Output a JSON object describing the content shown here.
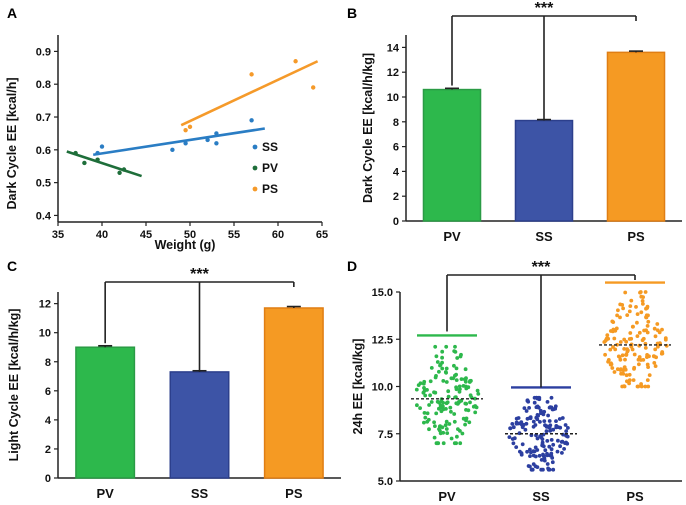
{
  "chart_data": [
    {
      "panel": "A",
      "type": "scatter",
      "xlabel": "Weight (g)",
      "ylabel": "Dark Cycle EE [kcal/h]",
      "xlim": [
        35,
        65
      ],
      "ylim": [
        0.38,
        0.95
      ],
      "xticks": [
        "35",
        "40",
        "45",
        "50",
        "55",
        "60",
        "65"
      ],
      "yticks": [
        "0.4",
        "0.5",
        "0.6",
        "0.7",
        "0.8",
        "0.9"
      ],
      "series": [
        {
          "name": "SS",
          "color": "#2a7dc4",
          "points": [
            [
              39.5,
              0.59
            ],
            [
              40,
              0.61
            ],
            [
              48,
              0.6
            ],
            [
              49.5,
              0.62
            ],
            [
              52,
              0.63
            ],
            [
              53,
              0.62
            ],
            [
              53,
              0.65
            ],
            [
              57,
              0.69
            ]
          ],
          "fit": [
            [
              39,
              0.585
            ],
            [
              58.5,
              0.665
            ]
          ]
        },
        {
          "name": "PV",
          "color": "#1e6e3a",
          "points": [
            [
              37,
              0.59
            ],
            [
              38,
              0.56
            ],
            [
              39.5,
              0.57
            ],
            [
              42,
              0.53
            ],
            [
              42.5,
              0.54
            ]
          ],
          "fit": [
            [
              36,
              0.595
            ],
            [
              44.5,
              0.52
            ]
          ]
        },
        {
          "name": "PS",
          "color": "#f59a2a",
          "points": [
            [
              49.5,
              0.66
            ],
            [
              50,
              0.67
            ],
            [
              57,
              0.83
            ],
            [
              62,
              0.87
            ],
            [
              64,
              0.79
            ]
          ],
          "fit": [
            [
              49,
              0.675
            ],
            [
              64.5,
              0.87
            ]
          ]
        }
      ]
    },
    {
      "panel": "B",
      "type": "bar",
      "categories": [
        "PV",
        "SS",
        "PS"
      ],
      "values": [
        10.6,
        8.1,
        13.6
      ],
      "errors": [
        0.1,
        0.08,
        0.1
      ],
      "colors": [
        "#2db84c",
        "#3d54a6",
        "#f59a23"
      ],
      "edge_colors": [
        "#2a9b45",
        "#2c3f8c",
        "#e07e14"
      ],
      "ylabel": "Dark Cycle EE [kcal/h/kg]",
      "ylim": [
        0,
        15
      ],
      "yticks": [
        "0",
        "2",
        "4",
        "6",
        "8",
        "10",
        "12",
        "14"
      ],
      "significance": "***"
    },
    {
      "panel": "C",
      "type": "bar",
      "categories": [
        "PV",
        "SS",
        "PS"
      ],
      "values": [
        9.0,
        7.3,
        11.7
      ],
      "errors": [
        0.1,
        0.08,
        0.1
      ],
      "colors": [
        "#2db84c",
        "#3d54a6",
        "#f59a23"
      ],
      "edge_colors": [
        "#2a9b45",
        "#2c3f8c",
        "#e07e14"
      ],
      "ylabel": "Light Cycle EE [kcal/h/kg]",
      "ylim": [
        0,
        12.8
      ],
      "yticks": [
        "0",
        "2",
        "4",
        "6",
        "8",
        "10",
        "12"
      ],
      "significance": "***"
    },
    {
      "panel": "D",
      "type": "scatter",
      "categories": [
        "PV",
        "SS",
        "PS"
      ],
      "ylabel": "24h EE [kcal/kg]",
      "ylim": [
        5.0,
        15.0
      ],
      "yticks": [
        "5.0",
        "7.5",
        "10.0",
        "12.5",
        "15.0"
      ],
      "series": [
        {
          "name": "PV",
          "color": "#2db84c",
          "median": 9.35,
          "upper": 12.7,
          "min": 7.0,
          "max": 12.1,
          "n": 150
        },
        {
          "name": "SS",
          "color": "#2c3fa0",
          "median": 7.5,
          "upper": 9.95,
          "min": 5.6,
          "max": 9.4,
          "n": 160
        },
        {
          "name": "PS",
          "color": "#f59a23",
          "median": 12.2,
          "upper": 15.5,
          "min": 10.0,
          "max": 15.0,
          "n": 150
        }
      ],
      "significance": "***"
    }
  ]
}
